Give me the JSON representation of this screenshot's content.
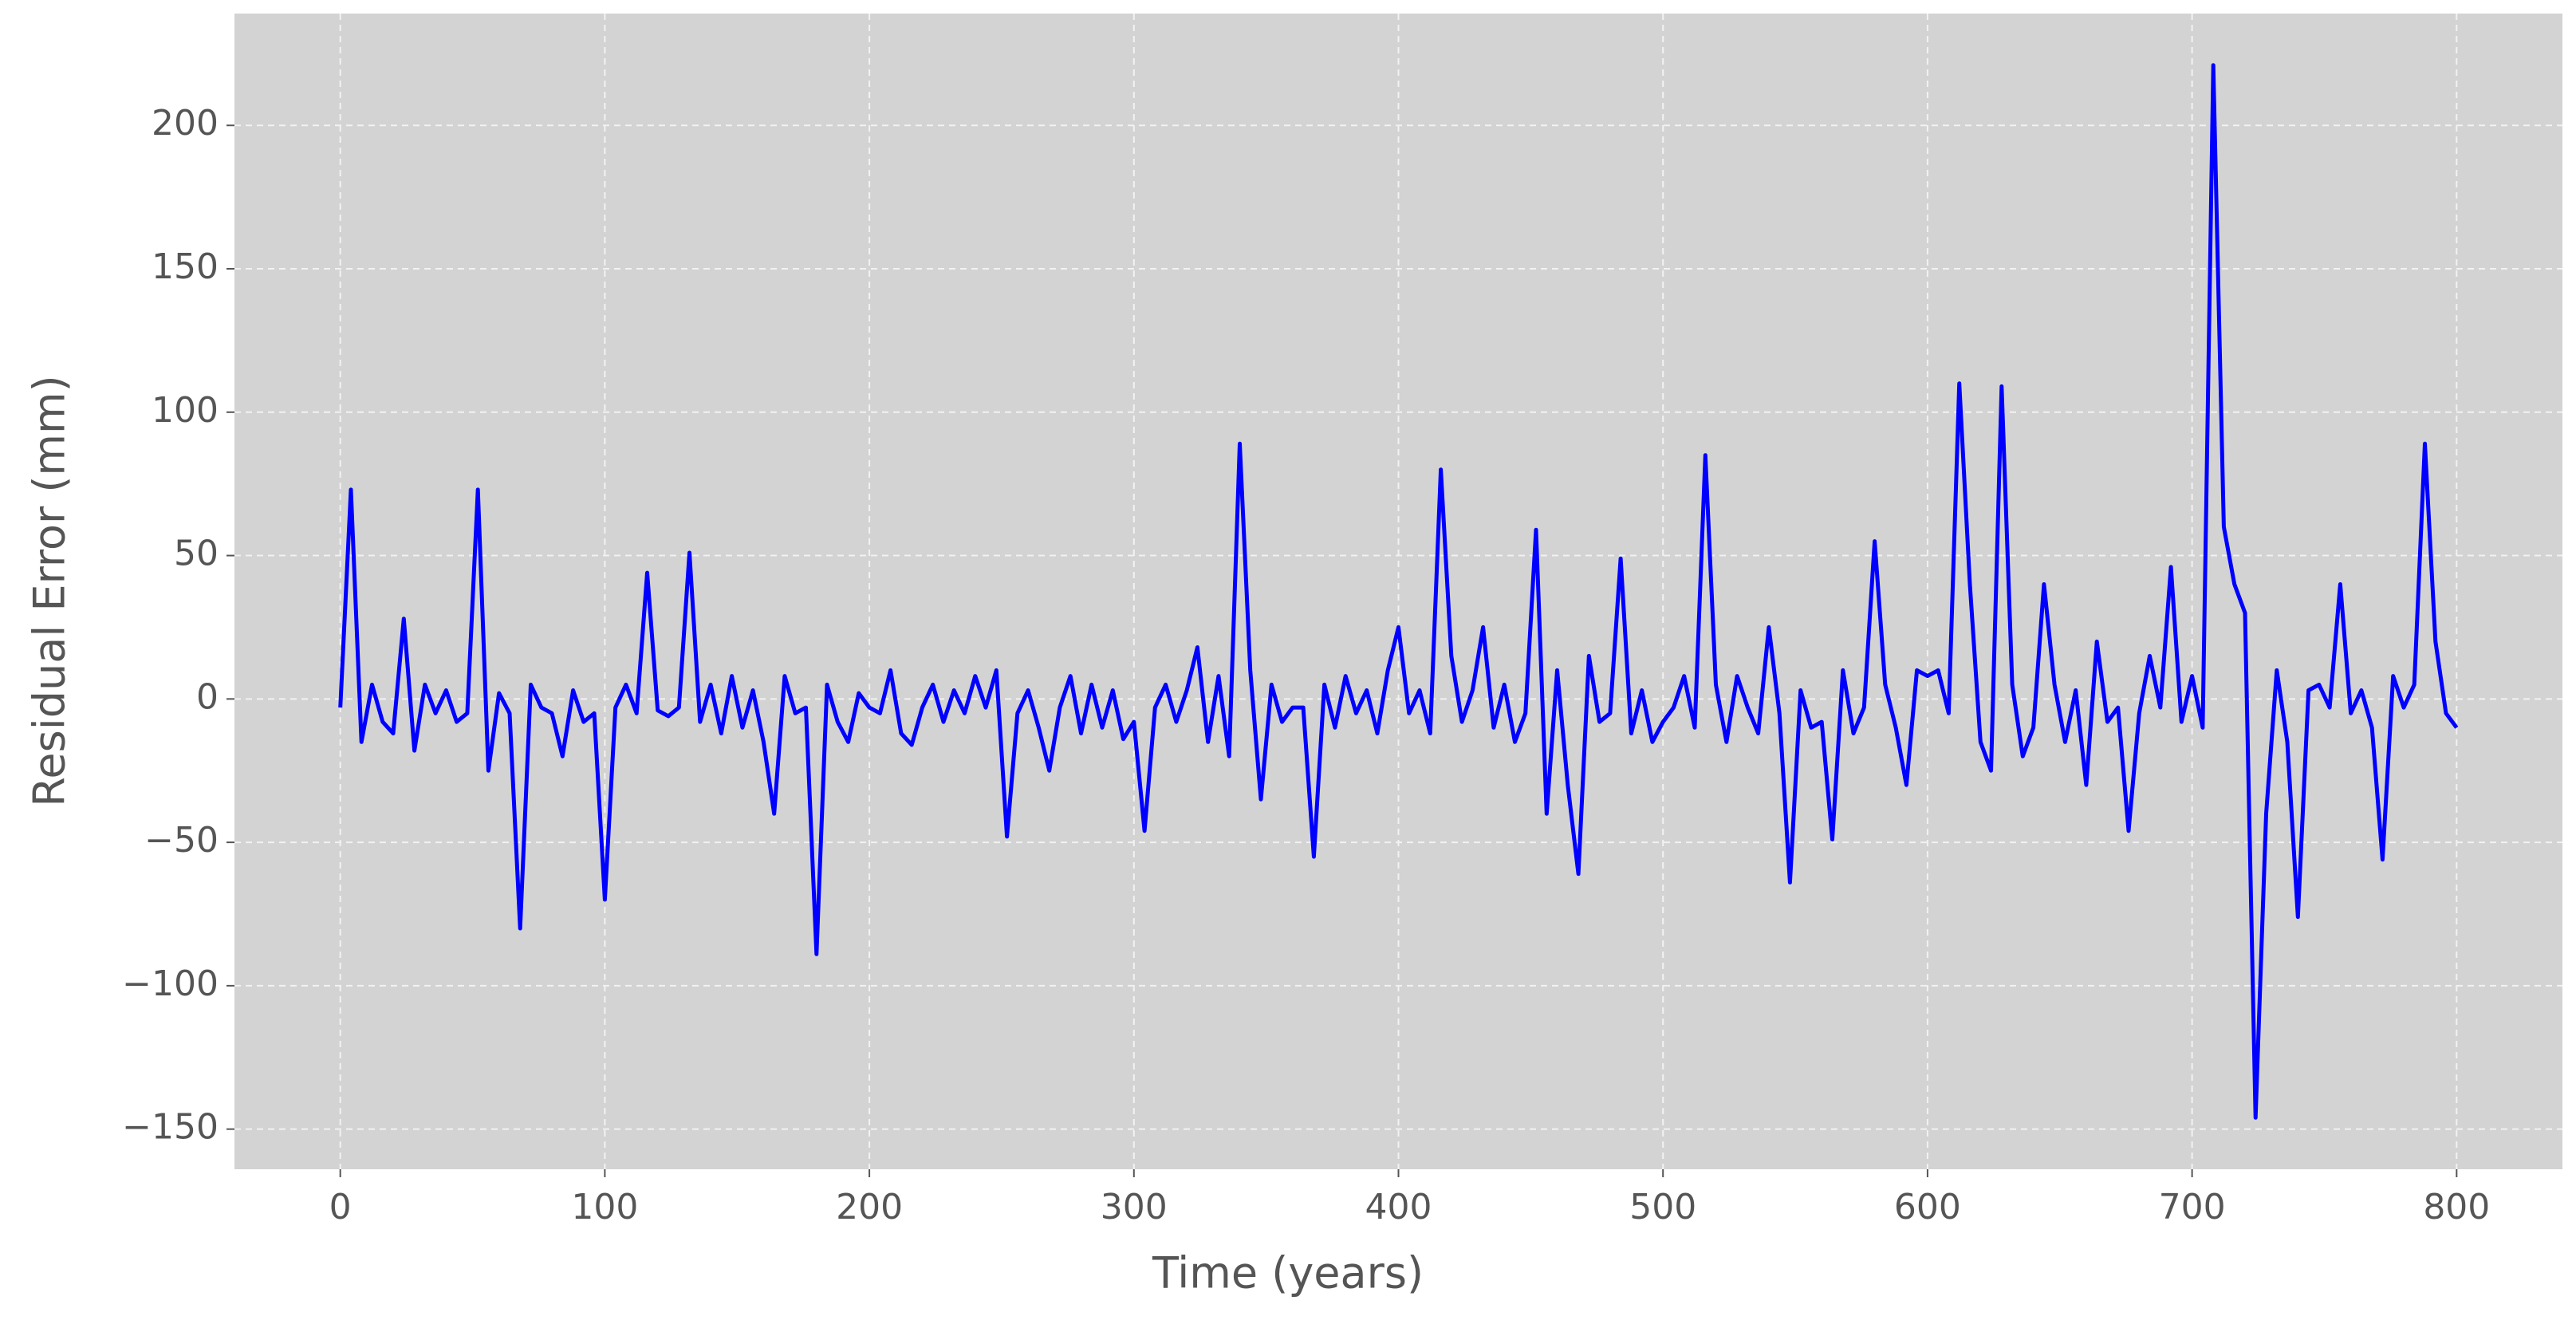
{
  "chart_data": {
    "type": "line",
    "xlabel": "Time (years)",
    "ylabel": "Residual Error (mm)",
    "x": [
      0,
      4,
      8,
      12,
      16,
      20,
      24,
      28,
      32,
      36,
      40,
      44,
      48,
      52,
      56,
      60,
      64,
      68,
      72,
      76,
      80,
      84,
      88,
      92,
      96,
      100,
      104,
      108,
      112,
      116,
      120,
      124,
      128,
      132,
      136,
      140,
      144,
      148,
      152,
      156,
      160,
      164,
      168,
      172,
      176,
      180,
      184,
      188,
      192,
      196,
      200,
      204,
      208,
      212,
      216,
      220,
      224,
      228,
      232,
      236,
      240,
      244,
      248,
      252,
      256,
      260,
      264,
      268,
      272,
      276,
      280,
      284,
      288,
      292,
      296,
      300,
      304,
      308,
      312,
      316,
      320,
      324,
      328,
      332,
      336,
      340,
      344,
      348,
      352,
      356,
      360,
      364,
      368,
      372,
      376,
      380,
      384,
      388,
      392,
      396,
      400,
      404,
      408,
      412,
      416,
      420,
      424,
      428,
      432,
      436,
      440,
      444,
      448,
      452,
      456,
      460,
      464,
      468,
      472,
      476,
      480,
      484,
      488,
      492,
      496,
      500,
      504,
      508,
      512,
      516,
      520,
      524,
      528,
      532,
      536,
      540,
      544,
      548,
      552,
      556,
      560,
      564,
      568,
      572,
      576,
      580,
      584,
      588,
      592,
      596,
      600,
      604,
      608,
      612,
      616,
      620,
      624,
      628,
      632,
      636,
      640,
      644,
      648,
      652,
      656,
      660,
      664,
      668,
      672,
      676,
      680,
      684,
      688,
      692,
      696,
      700,
      704,
      708,
      712,
      716,
      720,
      724,
      728,
      732,
      736,
      740,
      744,
      748,
      752,
      756,
      760,
      764,
      768,
      772,
      776,
      780,
      784,
      788,
      792,
      796,
      800
    ],
    "series": [
      {
        "name": "Residual",
        "color": "#0000ff",
        "values": [
          -3,
          73,
          -15,
          5,
          -8,
          -12,
          28,
          -18,
          5,
          -5,
          3,
          -8,
          -5,
          73,
          -25,
          2,
          -5,
          -80,
          5,
          -3,
          -5,
          -20,
          3,
          -8,
          -5,
          -70,
          -3,
          5,
          -5,
          44,
          -4,
          -6,
          -3,
          51,
          -8,
          5,
          -12,
          8,
          -10,
          3,
          -15,
          -40,
          8,
          -5,
          -3,
          -89,
          5,
          -8,
          -15,
          2,
          -3,
          -5,
          10,
          -12,
          -16,
          -3,
          5,
          -8,
          3,
          -5,
          8,
          -3,
          10,
          -48,
          -5,
          3,
          -10,
          -25,
          -3,
          8,
          -12,
          5,
          -10,
          3,
          -14,
          -8,
          -46,
          -3,
          5,
          -8,
          3,
          18,
          -15,
          8,
          -20,
          89,
          10,
          -35,
          5,
          -8,
          -3,
          -3,
          -55,
          5,
          -10,
          8,
          -5,
          3,
          -12,
          10,
          25,
          -5,
          3,
          -12,
          80,
          15,
          -8,
          3,
          25,
          -10,
          5,
          -15,
          -5,
          59,
          -40,
          10,
          -30,
          -61,
          15,
          -8,
          -5,
          49,
          -12,
          3,
          -15,
          -8,
          -3,
          8,
          -10,
          85,
          5,
          -15,
          8,
          -3,
          -12,
          25,
          -5,
          -64,
          3,
          -10,
          -8,
          -49,
          10,
          -12,
          -3,
          55,
          5,
          -10,
          -30,
          10,
          8,
          10,
          -5,
          110,
          40,
          -15,
          -25,
          109,
          5,
          -20,
          -10,
          40,
          5,
          -15,
          3,
          -30,
          20,
          -8,
          -3,
          -46,
          -5,
          15,
          -3,
          46,
          -8,
          8,
          -10,
          221,
          60,
          40,
          30,
          -146,
          -40,
          10,
          -15,
          -76,
          3,
          5,
          -3,
          40,
          -5,
          3,
          -10,
          -56,
          8,
          -3,
          5,
          89,
          20,
          -5,
          -10
        ]
      }
    ],
    "xlim": [
      -40,
      840
    ],
    "ylim": [
      -164,
      239
    ],
    "xticks": [
      0,
      100,
      200,
      300,
      400,
      500,
      600,
      700,
      800
    ],
    "yticks": [
      {
        "value": -150,
        "label": "−150"
      },
      {
        "value": -100,
        "label": "−100"
      },
      {
        "value": -50,
        "label": "−50"
      },
      0,
      50,
      100,
      150,
      200
    ],
    "grid": true
  }
}
